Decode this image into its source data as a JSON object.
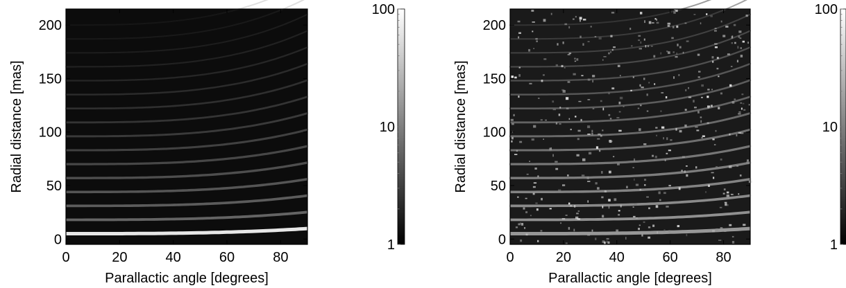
{
  "chart_data": [
    {
      "type": "heatmap",
      "title": "",
      "xlabel": "Parallactic angle [degrees]",
      "ylabel": "Radial distance [mas]",
      "xlim": [
        0,
        90
      ],
      "ylim": [
        -5,
        215
      ],
      "x_ticks": [
        0,
        20,
        40,
        60,
        80
      ],
      "y_ticks": [
        0,
        50,
        100,
        150,
        200
      ],
      "colormap": "grayscale",
      "colorbar": {
        "scale": "log",
        "range": [
          1,
          100
        ],
        "ticks": [
          "1",
          "10",
          "100"
        ]
      },
      "pattern": "smooth",
      "description_values": {
        "peak_near_y": 5,
        "ring_spacing_mas": 13
      }
    },
    {
      "type": "heatmap",
      "title": "",
      "xlabel": "Parallactic angle [degrees]",
      "ylabel": "Radial distance [mas]",
      "xlim": [
        0,
        90
      ],
      "ylim": [
        -5,
        215
      ],
      "x_ticks": [
        0,
        20,
        40,
        60,
        80
      ],
      "y_ticks": [
        0,
        50,
        100,
        150,
        200
      ],
      "colormap": "grayscale",
      "colorbar": {
        "scale": "log",
        "range": [
          1,
          100
        ],
        "ticks": [
          "1",
          "10",
          "100"
        ]
      },
      "pattern": "noisy",
      "description_values": {
        "peak_near_y": 5,
        "ring_spacing_mas": 13
      }
    }
  ],
  "colors": {
    "background": "#ffffff",
    "axis": "#000000"
  }
}
